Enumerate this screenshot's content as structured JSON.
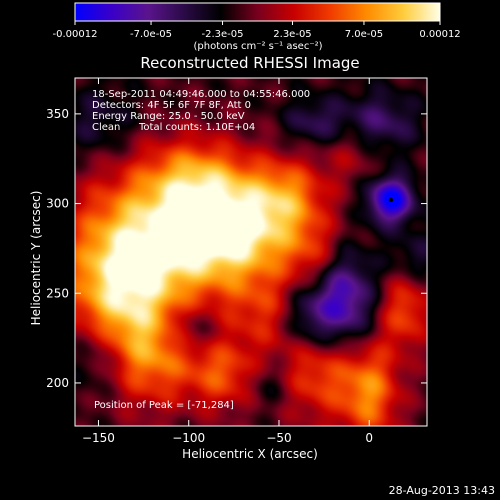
{
  "colorbar": {
    "tick_labels": [
      "-0.00012",
      "-7.0e-05",
      "-2.3e-05",
      "2.3e-05",
      "7.0e-05",
      "0.00012"
    ],
    "tick_values": [
      -0.00012,
      -7e-05,
      -2.3e-05,
      2.3e-05,
      7e-05,
      0.00012
    ],
    "range": [
      -0.00012,
      0.00012
    ],
    "unit_label": "(photons cm⁻² s⁻¹ asec⁻²)",
    "colors": [
      "#0000ff",
      "#3a00c8",
      "#5a148c",
      "#2a0a46",
      "#000000",
      "#78001e",
      "#c80000",
      "#f03c00",
      "#ff8c00",
      "#ffcc3c",
      "#ffffe6"
    ]
  },
  "chart_data": {
    "type": "heatmap",
    "title": "Reconstructed RHESSI Image",
    "xlabel": "Heliocentric X (arcsec)",
    "ylabel": "Heliocentric Y (arcsec)",
    "xlim": [
      -163,
      32
    ],
    "ylim": [
      176,
      370
    ],
    "x_ticks": [
      -150,
      -100,
      -50,
      0
    ],
    "x_tick_labels": [
      "−150",
      "−100",
      "−50",
      "0"
    ],
    "y_ticks": [
      200,
      250,
      300,
      350
    ],
    "y_tick_labels": [
      "200",
      "250",
      "300",
      "350"
    ],
    "peak": [
      -71,
      284
    ],
    "blobs": [
      {
        "x": -120,
        "y": 280,
        "amp": 0.0001,
        "sx": 30,
        "sy": 28
      },
      {
        "x": -75,
        "y": 285,
        "amp": 0.00012,
        "sx": 25,
        "sy": 20
      },
      {
        "x": -140,
        "y": 250,
        "amp": 8e-05,
        "sx": 20,
        "sy": 25
      },
      {
        "x": -95,
        "y": 315,
        "amp": 6e-05,
        "sx": 20,
        "sy": 15
      },
      {
        "x": -45,
        "y": 305,
        "amp": 6e-05,
        "sx": 15,
        "sy": 15
      },
      {
        "x": -30,
        "y": 270,
        "amp": 4e-05,
        "sx": 12,
        "sy": 15
      },
      {
        "x": -60,
        "y": 240,
        "amp": 4e-05,
        "sx": 15,
        "sy": 15
      },
      {
        "x": -120,
        "y": 215,
        "amp": 7e-05,
        "sx": 18,
        "sy": 20
      },
      {
        "x": -80,
        "y": 205,
        "amp": 6e-05,
        "sx": 14,
        "sy": 14
      },
      {
        "x": -30,
        "y": 210,
        "amp": 7e-05,
        "sx": 15,
        "sy": 20
      },
      {
        "x": 0,
        "y": 195,
        "amp": 8e-05,
        "sx": 12,
        "sy": 20
      },
      {
        "x": 20,
        "y": 240,
        "amp": 6e-05,
        "sx": 10,
        "sy": 15
      },
      {
        "x": -10,
        "y": 330,
        "amp": 3e-05,
        "sx": 12,
        "sy": 12
      },
      {
        "x": 12,
        "y": 302,
        "amp": -0.00011,
        "sx": 9,
        "sy": 9
      },
      {
        "x": 5,
        "y": 345,
        "amp": -5e-05,
        "sx": 15,
        "sy": 12
      },
      {
        "x": -30,
        "y": 345,
        "amp": -4e-05,
        "sx": 12,
        "sy": 10
      },
      {
        "x": -15,
        "y": 245,
        "amp": -9e-05,
        "sx": 12,
        "sy": 20
      },
      {
        "x": -35,
        "y": 235,
        "amp": -6e-05,
        "sx": 10,
        "sy": 15
      },
      {
        "x": -150,
        "y": 215,
        "amp": -4e-05,
        "sx": 12,
        "sy": 15
      },
      {
        "x": -100,
        "y": 230,
        "amp": -4e-05,
        "sx": 12,
        "sy": 10
      },
      {
        "x": -55,
        "y": 200,
        "amp": -3e-05,
        "sx": 10,
        "sy": 10
      },
      {
        "x": -150,
        "y": 345,
        "amp": -3e-05,
        "sx": 15,
        "sy": 15
      },
      {
        "x": 25,
        "y": 270,
        "amp": -3e-05,
        "sx": 10,
        "sy": 10
      }
    ]
  },
  "annotations": {
    "time_range": "18-Sep-2011 04:49:46.000 to 04:55:46.000",
    "detectors": "Detectors: 4F 5F 6F 7F 8F, Att 0",
    "energy_range": "Energy Range: 25.0 - 50.0 keV",
    "clean_label": "Clean",
    "total_counts": "Total counts: 1.10E+04",
    "peak_position": "Position of Peak = [-71,284]"
  },
  "footer": {
    "timestamp": "28-Aug-2013 13:43"
  }
}
